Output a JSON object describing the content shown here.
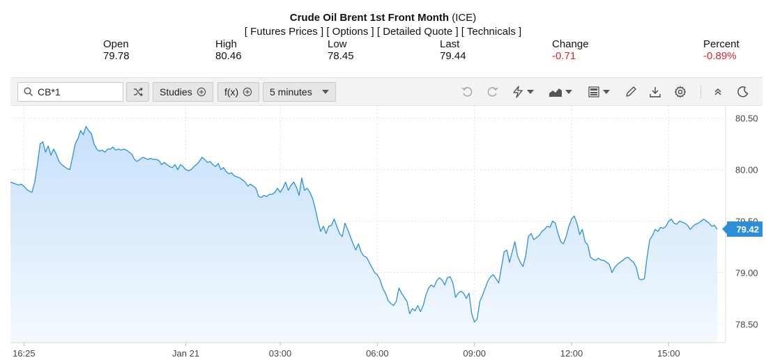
{
  "header": {
    "title_bold": "Crude Oil Brent 1st Front Month",
    "title_suffix": "(ICE)",
    "nav": [
      "[ Futures Prices ]",
      "[ Options ]",
      "[ Detailed Quote ]",
      "[ Technicals ]"
    ]
  },
  "quote": {
    "open_label": "Open",
    "open_value": "79.78",
    "high_label": "High",
    "high_value": "80.46",
    "low_label": "Low",
    "low_value": "78.45",
    "last_label": "Last",
    "last_value": "79.44",
    "change_label": "Change",
    "change_value": "-0.71",
    "percent_label": "Percent",
    "percent_value": "-0.89%",
    "negative_color": "#d9262b"
  },
  "toolbar": {
    "search_value": "CB*1",
    "studies_label": "Studies",
    "fx_label": "f(x)",
    "interval_label": "5 minutes",
    "icons": [
      "search-icon",
      "shuffle-icon",
      "plus-circle-icon",
      "chevron-down-icon",
      "undo-icon",
      "redo-icon",
      "lightning-icon",
      "chart-type-icon",
      "layout-icon",
      "pencil-icon",
      "download-icon",
      "gear-icon",
      "collapse-icon",
      "moon-icon"
    ]
  },
  "chart_data": {
    "type": "area",
    "x_tick_labels": [
      "16:25",
      "Jan 21",
      "03:00",
      "06:00",
      "09:00",
      "12:00",
      "15:00"
    ],
    "y_tick_labels": [
      "80.50",
      "80.00",
      "79.50",
      "79.00",
      "78.50"
    ],
    "y_ticks": [
      80.5,
      80.0,
      79.5,
      79.0,
      78.5
    ],
    "ylim": [
      78.32,
      80.62
    ],
    "last_price_label": "79.42",
    "last_price": 79.42,
    "grid": true,
    "line_color": "#2e8fd8",
    "fill_top_color": "#c6e1fb",
    "fill_bottom_color": "#f4f9fe",
    "values": [
      79.88,
      79.87,
      79.86,
      79.85,
      79.86,
      79.84,
      79.81,
      79.79,
      79.78,
      79.88,
      80.05,
      80.25,
      80.27,
      80.17,
      80.23,
      80.14,
      80.2,
      80.15,
      80.08,
      80.05,
      80.03,
      80.01,
      80.0,
      80.12,
      80.25,
      80.3,
      80.38,
      80.34,
      80.42,
      80.38,
      80.35,
      80.25,
      80.2,
      80.18,
      80.19,
      80.17,
      80.2,
      80.2,
      80.22,
      80.19,
      80.2,
      80.19,
      80.2,
      80.19,
      80.17,
      80.15,
      80.1,
      80.08,
      80.1,
      80.12,
      80.11,
      80.1,
      80.11,
      80.1,
      80.1,
      80.09,
      80.05,
      80.07,
      80.05,
      80.03,
      80.02,
      80.05,
      80.0,
      80.05,
      80.03,
      80.0,
      79.99,
      80.0,
      80.03,
      80.05,
      80.08,
      80.12,
      80.1,
      80.07,
      80.08,
      80.05,
      80.03,
      80.06,
      80.0,
      80.02,
      79.98,
      79.96,
      79.97,
      79.94,
      79.93,
      79.92,
      79.9,
      79.88,
      79.84,
      79.86,
      79.84,
      79.82,
      79.74,
      79.73,
      79.75,
      79.74,
      79.76,
      79.76,
      79.78,
      79.82,
      79.78,
      79.82,
      79.88,
      79.8,
      79.85,
      79.88,
      79.83,
      79.75,
      79.92,
      79.8,
      79.82,
      79.78,
      79.72,
      79.62,
      79.5,
      79.4,
      79.45,
      79.38,
      79.45,
      79.46,
      79.52,
      79.45,
      79.38,
      79.35,
      79.48,
      79.42,
      79.35,
      79.28,
      79.22,
      79.28,
      79.2,
      79.16,
      79.15,
      79.1,
      79.05,
      79.0,
      78.98,
      78.93,
      78.85,
      78.8,
      78.73,
      78.7,
      78.68,
      78.72,
      78.85,
      78.8,
      78.76,
      78.72,
      78.6,
      78.65,
      78.63,
      78.68,
      78.62,
      78.68,
      78.78,
      78.85,
      78.88,
      78.86,
      78.92,
      78.95,
      78.93,
      78.88,
      78.95,
      78.96,
      78.9,
      78.76,
      78.8,
      78.82,
      78.8,
      78.75,
      78.8,
      78.6,
      78.52,
      78.55,
      78.72,
      78.78,
      78.85,
      78.92,
      78.96,
      78.98,
      78.94,
      78.9,
      79.05,
      79.2,
      79.22,
      79.1,
      79.2,
      79.3,
      79.16,
      79.1,
      79.06,
      79.16,
      79.35,
      79.38,
      79.32,
      79.34,
      79.36,
      79.4,
      79.42,
      79.45,
      79.44,
      79.5,
      79.48,
      79.38,
      79.3,
      79.28,
      79.35,
      79.45,
      79.52,
      79.55,
      79.48,
      79.37,
      79.42,
      79.3,
      79.27,
      79.15,
      79.13,
      79.12,
      79.14,
      79.12,
      79.12,
      79.1,
      79.08,
      79.0,
      79.05,
      79.08,
      79.1,
      79.12,
      79.14,
      79.15,
      79.12,
      79.1,
      79.05,
      78.94,
      78.93,
      78.94,
      79.15,
      79.32,
      79.36,
      79.42,
      79.4,
      79.44,
      79.43,
      79.45,
      79.5,
      79.52,
      79.48,
      79.47,
      79.5,
      79.49,
      79.48,
      79.46,
      79.42,
      79.45,
      79.47,
      79.48,
      79.5,
      79.52,
      79.5,
      79.48,
      79.45,
      79.46,
      79.42
    ]
  }
}
